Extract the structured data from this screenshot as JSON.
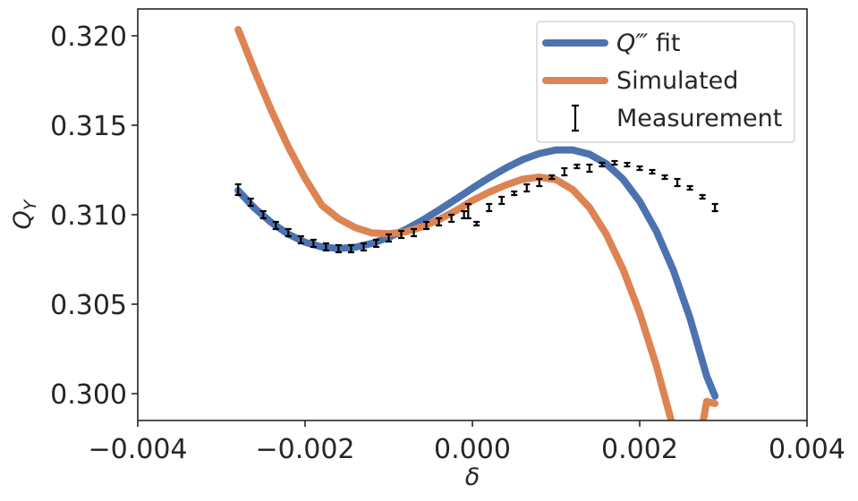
{
  "chart_data": {
    "type": "line",
    "title": "",
    "xlabel": "δ",
    "ylabel_main": "Q",
    "ylabel_sub": "Y",
    "xlim": [
      -0.004,
      0.004
    ],
    "ylim": [
      0.2985,
      0.3215
    ],
    "xticks": [
      -0.004,
      -0.002,
      0.0,
      0.002,
      0.004
    ],
    "xtick_labels": [
      "−0.004",
      "−0.002",
      "0.000",
      "0.002",
      "0.004"
    ],
    "yticks": [
      0.3,
      0.305,
      0.31,
      0.315,
      0.32
    ],
    "ytick_labels": [
      "0.300",
      "0.305",
      "0.310",
      "0.315",
      "0.320"
    ],
    "grid": false,
    "legend_position": "top-right",
    "series": [
      {
        "name": "Q‴ fit",
        "kind": "line",
        "color": "#4c72b0",
        "x": [
          -0.0028,
          -0.0026,
          -0.0024,
          -0.0022,
          -0.002,
          -0.0018,
          -0.0016,
          -0.0014,
          -0.0012,
          -0.001,
          -0.0008,
          -0.0006,
          -0.0004,
          -0.0002,
          0.0,
          0.0002,
          0.0004,
          0.0006,
          0.0008,
          0.001,
          0.0012,
          0.0014,
          0.0016,
          0.0018,
          0.002,
          0.0022,
          0.0024,
          0.0026,
          0.0028,
          0.0029
        ],
        "y": [
          0.31135,
          0.31035,
          0.30955,
          0.30891,
          0.30846,
          0.3082,
          0.30811,
          0.30818,
          0.3084,
          0.30873,
          0.30917,
          0.30968,
          0.31026,
          0.31086,
          0.31148,
          0.31207,
          0.31261,
          0.31308,
          0.31342,
          0.31362,
          0.31362,
          0.31338,
          0.31285,
          0.31199,
          0.31074,
          0.30907,
          0.30692,
          0.30424,
          0.30099,
          0.29986
        ]
      },
      {
        "name": "Simulated",
        "kind": "line",
        "color": "#dd8452",
        "x": [
          -0.0028,
          -0.0026,
          -0.0024,
          -0.0022,
          -0.002,
          -0.0018,
          -0.0016,
          -0.0014,
          -0.0012,
          -0.001,
          -0.0008,
          -0.0006,
          -0.0004,
          -0.0002,
          0.0,
          0.0002,
          0.0004,
          0.0006,
          0.0008,
          0.001,
          0.0012,
          0.0014,
          0.0016,
          0.0018,
          0.002,
          0.0022,
          0.0024,
          0.0026,
          0.0028,
          0.0029
        ],
        "y": [
          0.32035,
          0.318,
          0.31579,
          0.31379,
          0.31203,
          0.31053,
          0.30978,
          0.30928,
          0.30898,
          0.30894,
          0.30904,
          0.30933,
          0.30973,
          0.31022,
          0.31079,
          0.31126,
          0.31166,
          0.31198,
          0.3121,
          0.31196,
          0.3114,
          0.3104,
          0.30891,
          0.30696,
          0.3045,
          0.30155,
          0.2981,
          0.29414,
          0.29956,
          0.29945
        ]
      },
      {
        "name": "Measurement",
        "kind": "errorbar",
        "color": "#000000",
        "x": [
          -0.0028,
          -0.00265,
          -0.0025,
          -0.00235,
          -0.0022,
          -0.00205,
          -0.0019,
          -0.00175,
          -0.0016,
          -0.00145,
          -0.0013,
          -0.00115,
          -0.001,
          -0.00085,
          -0.0007,
          -0.00055,
          -0.0004,
          -0.00025,
          -0.0001,
          -5e-05,
          5e-05,
          0.0002,
          0.00035,
          0.0005,
          0.00065,
          0.0008,
          0.00095,
          0.0011,
          0.00125,
          0.0014,
          0.00155,
          0.0017,
          0.00185,
          0.002,
          0.00215,
          0.0023,
          0.00245,
          0.0026,
          0.00275,
          0.0029
        ],
        "y": [
          0.3114,
          0.3107,
          0.31,
          0.3094,
          0.309,
          0.3086,
          0.3084,
          0.3082,
          0.3081,
          0.3081,
          0.3082,
          0.3084,
          0.3087,
          0.3089,
          0.309,
          0.3094,
          0.3096,
          0.3098,
          0.31,
          0.3102,
          0.3095,
          0.3104,
          0.3108,
          0.3112,
          0.3115,
          0.3118,
          0.3121,
          0.3124,
          0.3127,
          0.3126,
          0.3128,
          0.3129,
          0.3128,
          0.3126,
          0.3124,
          0.3121,
          0.3118,
          0.3115,
          0.311,
          0.3104
        ],
        "yerr": [
          0.0003,
          0.0002,
          0.0002,
          0.0002,
          0.0002,
          0.0002,
          0.0002,
          0.0002,
          0.0002,
          0.0002,
          0.0002,
          0.0002,
          0.0002,
          0.0002,
          0.0002,
          0.0002,
          0.0002,
          0.0002,
          0.0002,
          0.0004,
          0.0001,
          0.0002,
          0.0002,
          0.0001,
          0.0002,
          0.0002,
          0.0001,
          0.0002,
          0.0001,
          0.0002,
          0.0001,
          0.0001,
          0.0001,
          0.0001,
          0.0001,
          0.0001,
          0.0002,
          0.0001,
          0.0001,
          0.0002
        ]
      }
    ],
    "legend": [
      {
        "label_main": "Q‴",
        "label_rest": " fit",
        "color": "#4c72b0",
        "kind": "line"
      },
      {
        "label_main": "Simulated",
        "label_rest": "",
        "color": "#dd8452",
        "kind": "line"
      },
      {
        "label_main": "Measurement",
        "label_rest": "",
        "color": "#000000",
        "kind": "errorbar"
      }
    ]
  }
}
